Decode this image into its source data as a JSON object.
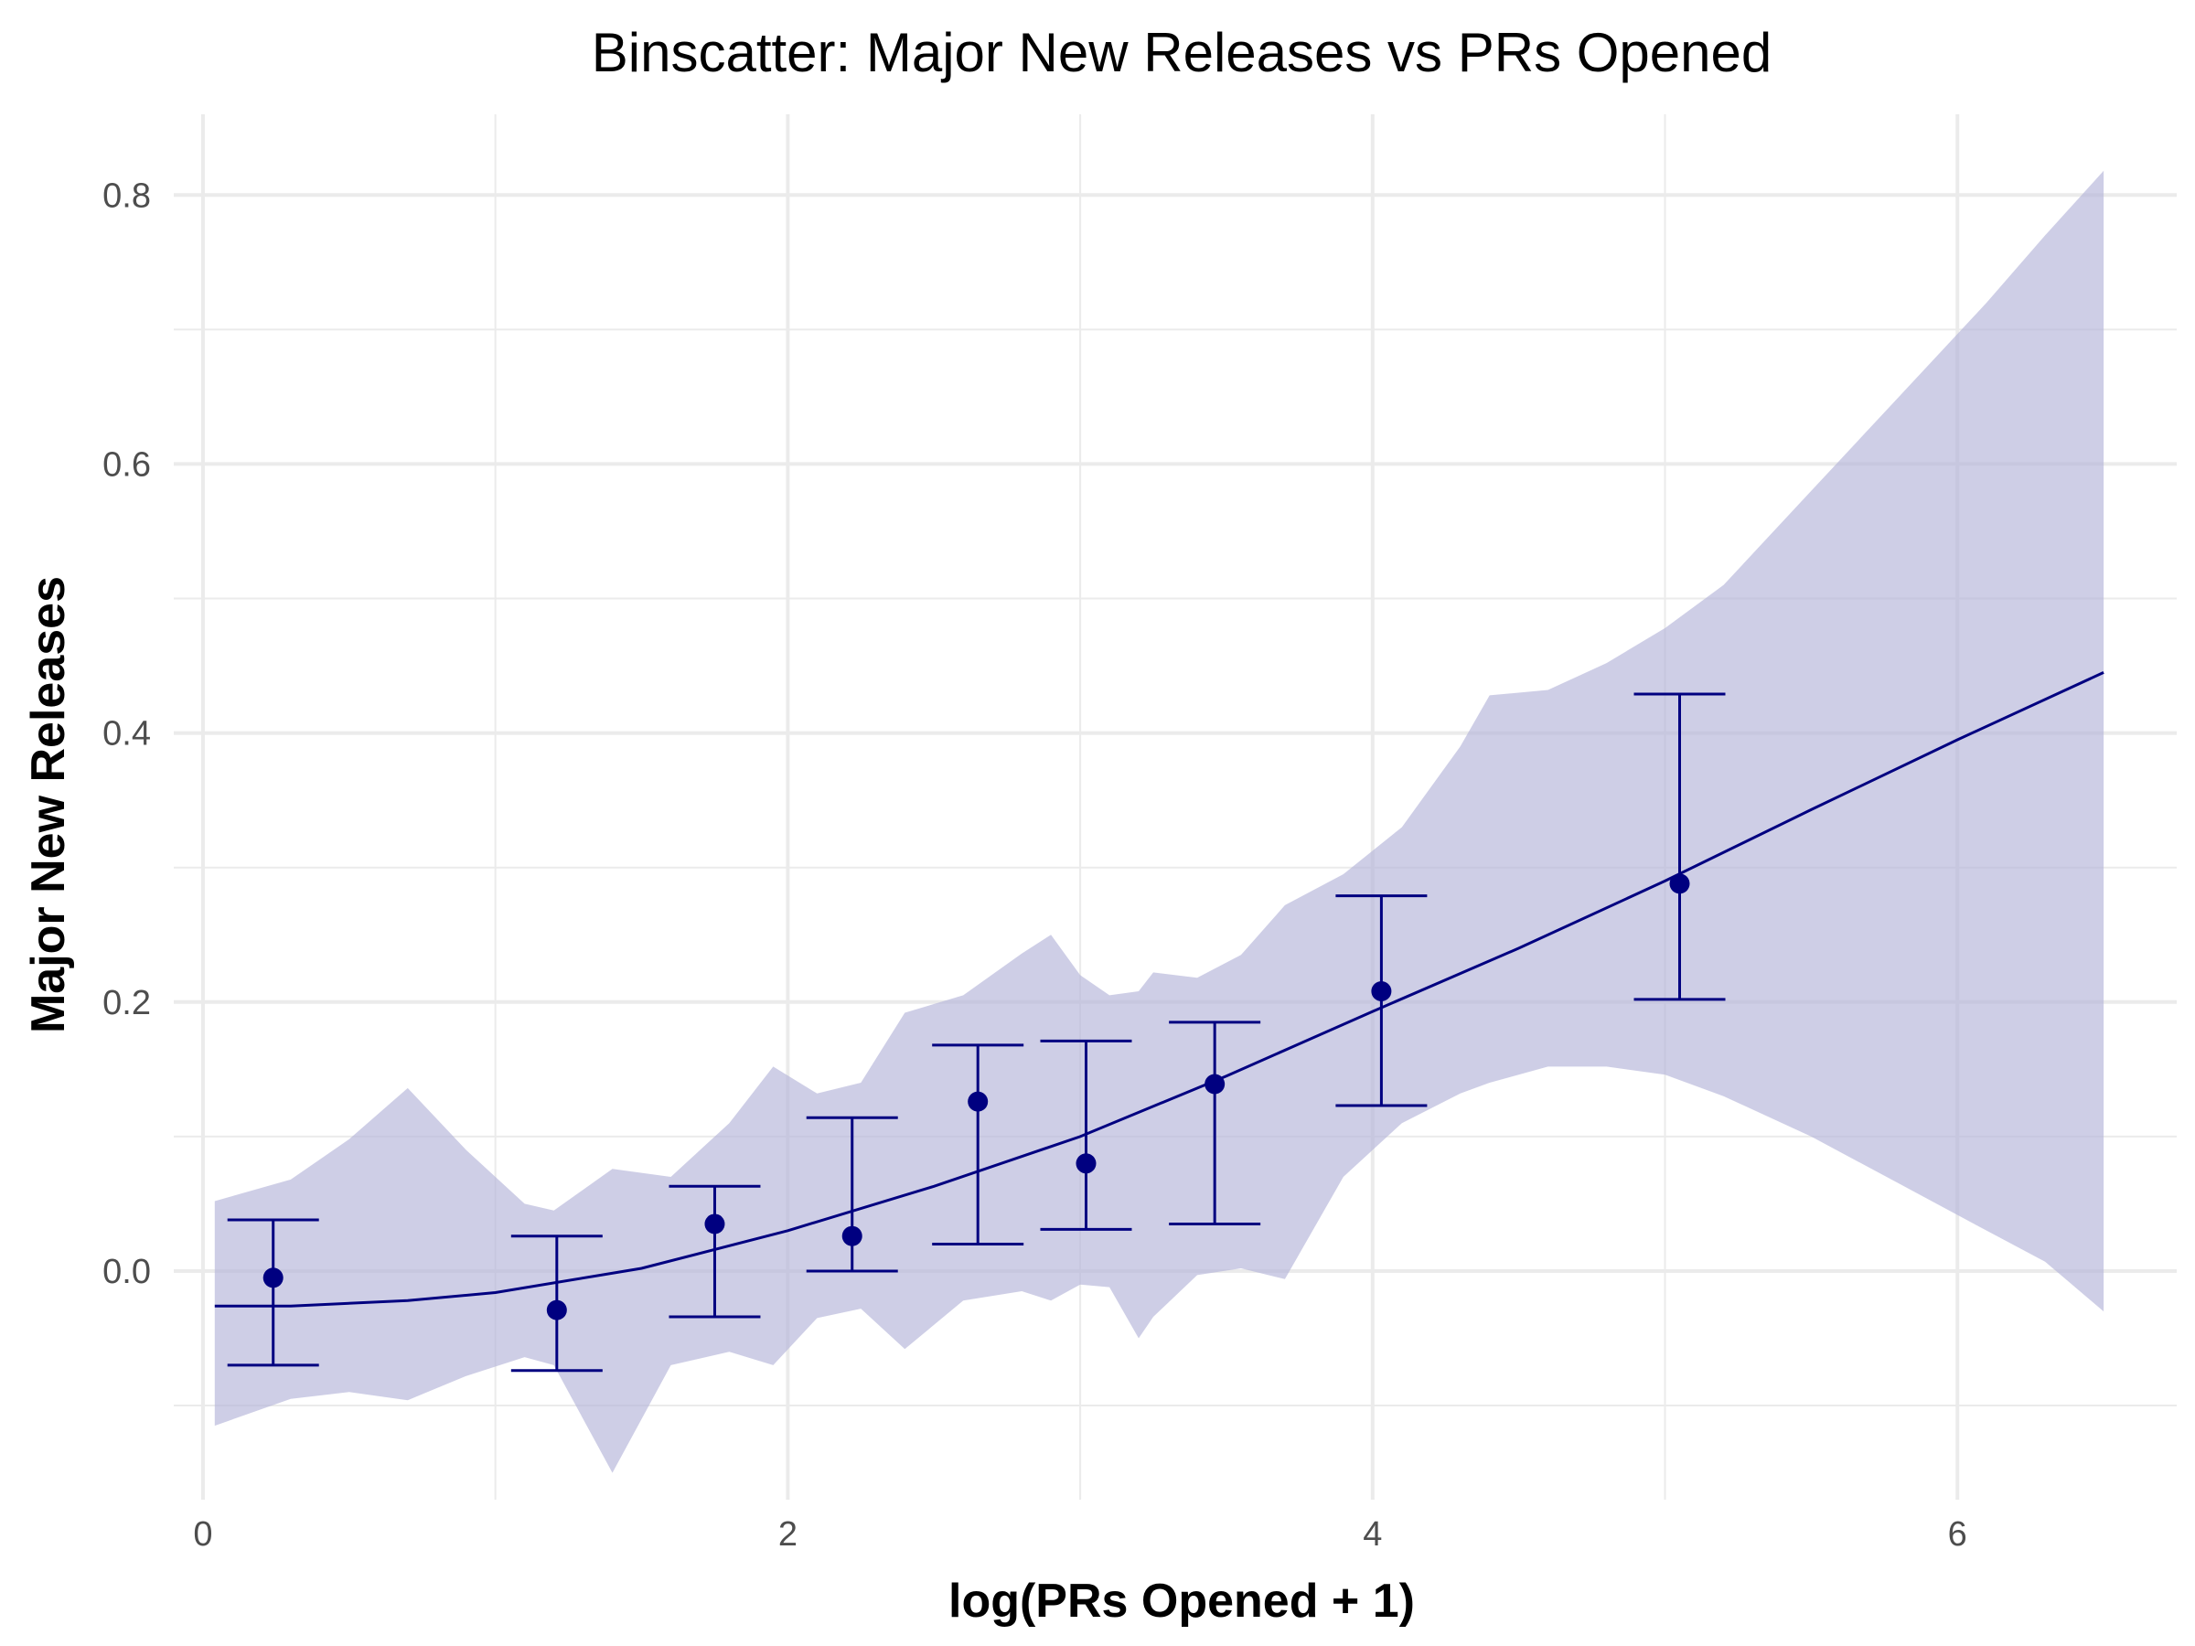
{
  "chart_data": {
    "type": "scatter",
    "title": "Binscatter: Major New Releases vs PRs Opened",
    "xlabel": "log(PRs Opened + 1)",
    "ylabel": "Major New Releases",
    "xlim": [
      -0.1,
      6.75
    ],
    "ylim": [
      -0.17,
      0.86
    ],
    "x_ticks": [
      0,
      2,
      4,
      6
    ],
    "x_tick_labels": [
      "0",
      "2",
      "4",
      "6"
    ],
    "y_ticks": [
      0.0,
      0.2,
      0.4,
      0.6,
      0.8
    ],
    "y_tick_labels": [
      "0.0",
      "0.2",
      "0.4",
      "0.6",
      "0.8"
    ],
    "grid": true,
    "colors": {
      "series": "#000080",
      "band": "#b3b3d9",
      "grid": "#ebebeb"
    },
    "points": [
      {
        "x": 0.24,
        "y": -0.005,
        "lower": -0.07,
        "upper": 0.038
      },
      {
        "x": 1.21,
        "y": -0.029,
        "lower": -0.074,
        "upper": 0.026
      },
      {
        "x": 1.75,
        "y": 0.035,
        "lower": -0.034,
        "upper": 0.063
      },
      {
        "x": 2.22,
        "y": 0.026,
        "lower": 0.0,
        "upper": 0.114
      },
      {
        "x": 2.65,
        "y": 0.126,
        "lower": 0.02,
        "upper": 0.168
      },
      {
        "x": 3.02,
        "y": 0.08,
        "lower": 0.031,
        "upper": 0.171
      },
      {
        "x": 3.46,
        "y": 0.139,
        "lower": 0.035,
        "upper": 0.185
      },
      {
        "x": 4.03,
        "y": 0.208,
        "lower": 0.123,
        "upper": 0.279
      },
      {
        "x": 5.05,
        "y": 0.288,
        "lower": 0.202,
        "upper": 0.429
      }
    ],
    "fit_line": {
      "x": [
        0.04,
        0.3,
        0.7,
        1.0,
        1.5,
        2.0,
        2.5,
        3.0,
        3.5,
        4.0,
        4.5,
        5.0,
        5.5,
        6.0,
        6.5
      ],
      "y": [
        -0.026,
        -0.026,
        -0.022,
        -0.016,
        0.002,
        0.03,
        0.063,
        0.1,
        0.145,
        0.193,
        0.24,
        0.29,
        0.343,
        0.395,
        0.445
      ]
    },
    "confidence_band": {
      "x": [
        0.04,
        0.3,
        0.5,
        0.7,
        0.9,
        1.1,
        1.2,
        1.4,
        1.6,
        1.8,
        1.95,
        2.1,
        2.25,
        2.4,
        2.6,
        2.8,
        2.9,
        3.0,
        3.1,
        3.2,
        3.25,
        3.4,
        3.55,
        3.7,
        3.9,
        4.1,
        4.3,
        4.4,
        4.6,
        4.8,
        5.0,
        5.2,
        5.5,
        5.8,
        6.1,
        6.3,
        6.5
      ],
      "upper": [
        0.052,
        0.068,
        0.098,
        0.136,
        0.09,
        0.05,
        0.045,
        0.076,
        0.07,
        0.11,
        0.152,
        0.132,
        0.14,
        0.192,
        0.205,
        0.236,
        0.25,
        0.22,
        0.205,
        0.208,
        0.222,
        0.218,
        0.235,
        0.272,
        0.295,
        0.33,
        0.39,
        0.428,
        0.432,
        0.452,
        0.478,
        0.51,
        0.58,
        0.65,
        0.72,
        0.77,
        0.818
      ],
      "lower": [
        -0.115,
        -0.095,
        -0.09,
        -0.096,
        -0.078,
        -0.064,
        -0.07,
        -0.15,
        -0.07,
        -0.06,
        -0.07,
        -0.035,
        -0.028,
        -0.058,
        -0.022,
        -0.015,
        -0.022,
        -0.01,
        -0.012,
        -0.05,
        -0.034,
        -0.003,
        0.002,
        -0.006,
        0.07,
        0.11,
        0.132,
        0.14,
        0.152,
        0.152,
        0.146,
        0.13,
        0.1,
        0.065,
        0.03,
        0.007,
        -0.03
      ]
    }
  }
}
